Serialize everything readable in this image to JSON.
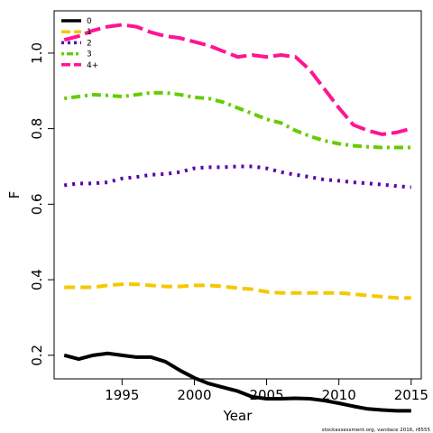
{
  "chart_data": {
    "type": "line",
    "xlabel": "Year",
    "ylabel": "F",
    "xlim": [
      1990.3,
      2015.7
    ],
    "ylim": [
      0.1375,
      1.112
    ],
    "xticks": [
      1995,
      2000,
      2005,
      2010,
      2015
    ],
    "yticks": [
      0.2,
      0.4,
      0.6,
      0.8,
      1.0
    ],
    "xtick_labels": [
      "1995",
      "2000",
      "2005",
      "2010",
      "2015"
    ],
    "ytick_labels": [
      "0.2",
      "0.4",
      "0.6",
      "0.8",
      "1.0"
    ],
    "legend_position": "top-left",
    "grid": false,
    "credit": "stockassessment.org, vandace 2016, r8555",
    "x": [
      1991,
      1992,
      1993,
      1994,
      1995,
      1996,
      1997,
      1998,
      1999,
      2000,
      2001,
      2002,
      2003,
      2004,
      2005,
      2006,
      2007,
      2008,
      2009,
      2010,
      2011,
      2012,
      2013,
      2014,
      2015
    ],
    "series": [
      {
        "name": "0",
        "color": "#000000",
        "dash": "solid",
        "values": [
          0.2,
          0.19,
          0.2,
          0.205,
          0.2,
          0.195,
          0.195,
          0.183,
          0.16,
          0.14,
          0.125,
          0.115,
          0.105,
          0.09,
          0.085,
          0.085,
          0.086,
          0.085,
          0.08,
          0.073,
          0.065,
          0.058,
          0.055,
          0.053,
          0.053
        ]
      },
      {
        "name": "1",
        "color": "#f5c800",
        "dash": "dashed",
        "values": [
          0.38,
          0.38,
          0.38,
          0.385,
          0.388,
          0.388,
          0.385,
          0.382,
          0.382,
          0.385,
          0.385,
          0.382,
          0.378,
          0.375,
          0.368,
          0.365,
          0.365,
          0.365,
          0.365,
          0.365,
          0.362,
          0.358,
          0.355,
          0.352,
          0.352
        ]
      },
      {
        "name": "2",
        "color": "#5b00a8",
        "dash": "dotted",
        "values": [
          0.65,
          0.655,
          0.655,
          0.658,
          0.668,
          0.672,
          0.678,
          0.68,
          0.685,
          0.695,
          0.698,
          0.698,
          0.7,
          0.7,
          0.695,
          0.685,
          0.678,
          0.672,
          0.665,
          0.662,
          0.658,
          0.655,
          0.652,
          0.648,
          0.645
        ]
      },
      {
        "name": "3",
        "color": "#66cc00",
        "dash": "dotdash",
        "values": [
          0.88,
          0.885,
          0.89,
          0.888,
          0.885,
          0.89,
          0.895,
          0.895,
          0.89,
          0.883,
          0.88,
          0.87,
          0.855,
          0.84,
          0.825,
          0.815,
          0.795,
          0.78,
          0.768,
          0.76,
          0.755,
          0.752,
          0.75,
          0.75,
          0.75
        ]
      },
      {
        "name": "4+",
        "color": "#ff1493",
        "dash": "longdash",
        "values": [
          1.035,
          1.045,
          1.06,
          1.07,
          1.075,
          1.07,
          1.055,
          1.045,
          1.04,
          1.03,
          1.02,
          1.005,
          0.99,
          0.995,
          0.99,
          0.995,
          0.99,
          0.955,
          0.905,
          0.855,
          0.81,
          0.795,
          0.785,
          0.79,
          0.8
        ]
      }
    ]
  }
}
